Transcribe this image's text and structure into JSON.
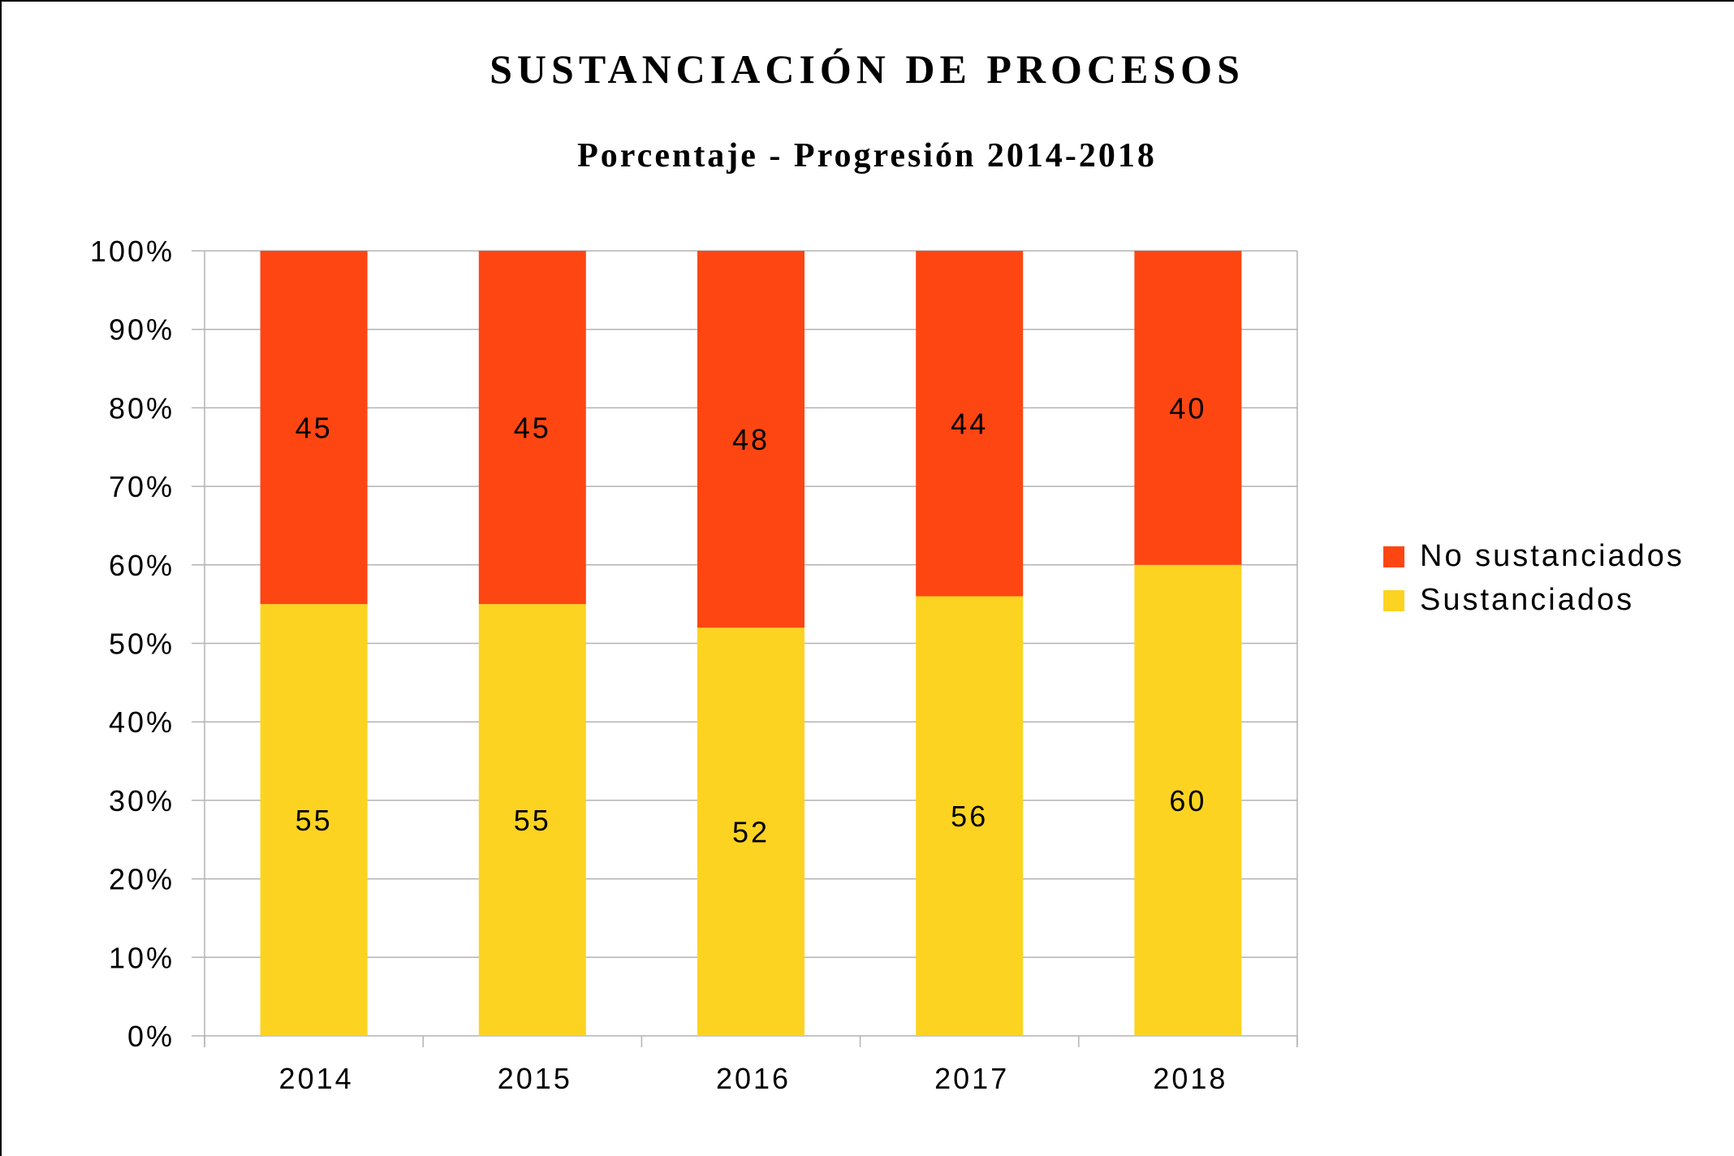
{
  "chart_data": {
    "type": "bar",
    "stacked": true,
    "title": "SUSTANCIACIÓN DE PROCESOS",
    "subtitle": "Porcentaje - Progresión 2014-2018",
    "categories": [
      "2014",
      "2015",
      "2016",
      "2017",
      "2018"
    ],
    "series": [
      {
        "name": "Sustanciados",
        "values": [
          55,
          55,
          52,
          56,
          60
        ],
        "color": "#FDD321"
      },
      {
        "name": "No sustanciados",
        "values": [
          45,
          45,
          48,
          44,
          40
        ],
        "color": "#FE4612"
      }
    ],
    "yticks": [
      "0%",
      "10%",
      "20%",
      "30%",
      "40%",
      "50%",
      "60%",
      "70%",
      "80%",
      "90%",
      "100%"
    ],
    "ylim": [
      0,
      100
    ],
    "grid": true,
    "legend": "right"
  }
}
